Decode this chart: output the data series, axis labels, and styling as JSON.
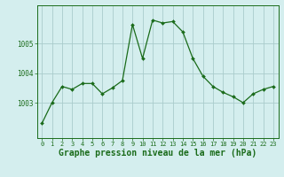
{
  "hours": [
    0,
    1,
    2,
    3,
    4,
    5,
    6,
    7,
    8,
    9,
    10,
    11,
    12,
    13,
    14,
    15,
    16,
    17,
    18,
    19,
    20,
    21,
    22,
    23
  ],
  "pressure": [
    1002.3,
    1003.0,
    1003.55,
    1003.45,
    1003.65,
    1003.65,
    1003.3,
    1003.5,
    1003.75,
    1005.65,
    1004.5,
    1005.8,
    1005.7,
    1005.75,
    1005.4,
    1004.5,
    1003.9,
    1003.55,
    1003.35,
    1003.2,
    1003.0,
    1003.3,
    1003.45,
    1003.55
  ],
  "line_color": "#1a6b1a",
  "marker_color": "#1a6b1a",
  "bg_color": "#d4eeee",
  "grid_color": "#aacccc",
  "ylabel_ticks": [
    1003,
    1004,
    1005
  ],
  "xlabel": "Graphe pression niveau de la mer (hPa)",
  "xlabel_color": "#1a6b1a",
  "xlabel_fontsize": 7,
  "tick_fontsize": 5,
  "ytick_fontsize": 5.5,
  "ylim_min": 1001.8,
  "ylim_max": 1006.3
}
